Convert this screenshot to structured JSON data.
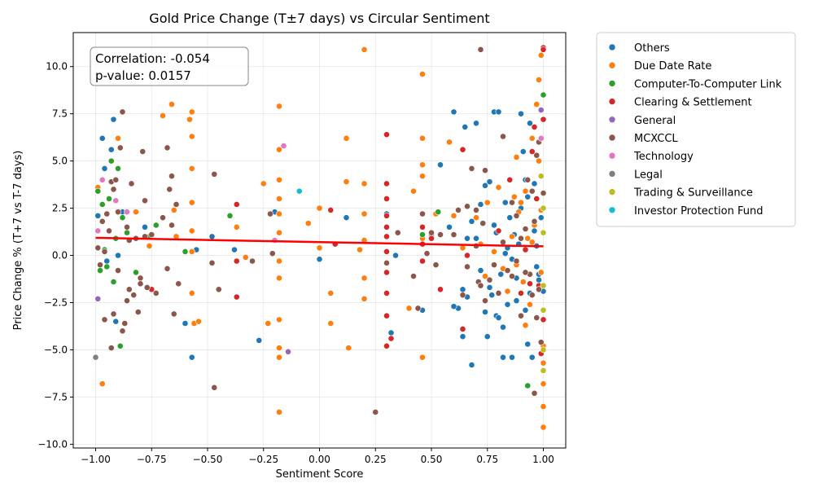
{
  "chart_data": {
    "type": "scatter",
    "title": "Gold Price Change (T±7 days) vs Circular Sentiment",
    "xlabel": "Sentiment Score",
    "ylabel": "Price Change % (T+7 vs T-7 days)",
    "xlim": [
      -1.1,
      1.1
    ],
    "ylim": [
      -10.2,
      11.8
    ],
    "x_ticks": [
      -1.0,
      -0.75,
      -0.5,
      -0.25,
      0.0,
      0.25,
      0.5,
      0.75,
      1.0
    ],
    "x_tick_labels": [
      "−1.00",
      "−0.75",
      "−0.50",
      "−0.25",
      "0.00",
      "0.25",
      "0.50",
      "0.75",
      "1.00"
    ],
    "y_ticks": [
      -10.0,
      -7.5,
      -5.0,
      -2.5,
      0.0,
      2.5,
      5.0,
      7.5,
      10.0
    ],
    "y_tick_labels": [
      "−10.0",
      "−7.5",
      "−5.0",
      "−2.5",
      "0.0",
      "2.5",
      "5.0",
      "7.5",
      "10.0"
    ],
    "grid": true,
    "legend_position": "outside-right",
    "annotation": {
      "correlation_line": "Correlation: -0.054",
      "pvalue_line": "p-value: 0.0157"
    },
    "regression_line": {
      "x": [
        -1.0,
        1.0
      ],
      "y": [
        0.93,
        0.48
      ],
      "color": "#ff0000"
    },
    "series": [
      {
        "name": "Others",
        "color": "#1f77b4",
        "x": [
          -0.99,
          -0.97,
          -0.96,
          -0.95,
          -0.93,
          -0.92,
          -0.91,
          -0.9,
          -0.88,
          -0.78,
          -0.6,
          -0.57,
          -0.55,
          -0.48,
          -0.38,
          -0.27,
          -0.2,
          0.0,
          0.12,
          0.3,
          0.32,
          0.34,
          0.46,
          0.5,
          0.54,
          0.58,
          0.6,
          0.62,
          0.64,
          0.65,
          0.66,
          0.68,
          0.7,
          0.72,
          0.74,
          0.75,
          0.76,
          0.77,
          0.78,
          0.79,
          0.8,
          0.81,
          0.82,
          0.83,
          0.84,
          0.85,
          0.86,
          0.87,
          0.88,
          0.89,
          0.9,
          0.91,
          0.92,
          0.93,
          0.94,
          0.95,
          0.96,
          0.97,
          0.98,
          0.99,
          1.0,
          0.76,
          0.79,
          0.83,
          0.88,
          0.93,
          0.97,
          0.66,
          0.7,
          0.74,
          0.78,
          0.82,
          0.86,
          0.9,
          0.94,
          0.98,
          0.6,
          0.64,
          0.68,
          0.72,
          0.8,
          0.84,
          0.92,
          0.96
        ],
        "y": [
          2.1,
          6.2,
          4.6,
          -0.3,
          5.6,
          7.2,
          -3.5,
          0.0,
          2.3,
          1.5,
          -3.6,
          -5.4,
          0.3,
          1.0,
          0.3,
          -4.5,
          2.3,
          -0.2,
          2.0,
          2.2,
          -4.1,
          0.0,
          -2.9,
          1.1,
          4.8,
          1.5,
          7.6,
          -2.8,
          -4.3,
          6.8,
          0.9,
          -5.8,
          7.0,
          2.7,
          3.7,
          -4.3,
          3.9,
          -2.1,
          7.6,
          1.2,
          7.6,
          -1.0,
          -5.4,
          2.8,
          -2.6,
          2.0,
          -5.4,
          1.1,
          -1.2,
          0.6,
          7.5,
          5.5,
          4.0,
          -4.7,
          7.0,
          -5.4,
          3.8,
          0.5,
          -1.3,
          2.0,
          -1.9,
          -1.7,
          -3.2,
          0.1,
          -2.4,
          3.1,
          -0.6,
          -2.2,
          0.9,
          -3.0,
          1.6,
          -3.8,
          -0.2,
          2.5,
          -2.0,
          -1.0,
          -2.7,
          -1.8,
          1.8,
          -0.8,
          -3.3,
          0.4,
          -2.9,
          1.3
        ]
      },
      {
        "name": "Due Date Rate",
        "color": "#ff7f0e",
        "x": [
          -0.99,
          -0.97,
          -0.9,
          -0.82,
          -0.76,
          -0.7,
          -0.66,
          -0.65,
          -0.64,
          -0.58,
          -0.57,
          -0.57,
          -0.57,
          -0.57,
          -0.57,
          -0.57,
          -0.57,
          -0.56,
          -0.54,
          -0.37,
          -0.33,
          -0.25,
          -0.23,
          -0.18,
          -0.18,
          -0.18,
          -0.18,
          -0.18,
          -0.18,
          -0.18,
          -0.18,
          -0.18,
          -0.18,
          -0.18,
          -0.18,
          -0.05,
          0.0,
          0.0,
          0.05,
          0.05,
          0.12,
          0.12,
          0.13,
          0.18,
          0.2,
          0.2,
          0.2,
          0.2,
          0.2,
          0.2,
          0.4,
          0.42,
          0.46,
          0.46,
          0.46,
          0.46,
          0.46,
          0.46,
          0.52,
          0.58,
          0.6,
          0.64,
          0.7,
          0.75,
          0.8,
          0.85,
          0.88,
          0.9,
          0.92,
          0.95,
          0.97,
          0.98,
          0.99,
          1.0,
          1.0,
          1.0,
          1.0,
          1.0,
          0.86,
          0.88,
          0.89,
          0.91,
          0.93,
          0.94,
          0.96,
          0.99,
          0.87,
          0.9,
          0.95,
          0.99,
          0.84,
          0.82,
          0.78,
          0.74,
          0.72,
          0.92,
          0.98
        ],
        "y": [
          3.6,
          -6.8,
          6.2,
          2.3,
          0.5,
          7.4,
          8.0,
          2.4,
          1.0,
          7.2,
          7.6,
          6.3,
          4.6,
          2.8,
          1.3,
          0.2,
          -2.0,
          -3.6,
          -3.5,
          1.5,
          -0.1,
          3.8,
          -3.6,
          7.9,
          5.6,
          4.0,
          3.0,
          2.2,
          1.2,
          -0.3,
          -1.2,
          -3.4,
          -4.9,
          -5.4,
          -8.3,
          1.7,
          2.5,
          0.4,
          -2.0,
          -3.6,
          6.2,
          3.9,
          -4.9,
          0.3,
          10.9,
          3.8,
          2.2,
          0.8,
          -1.2,
          -2.3,
          -2.8,
          3.4,
          9.6,
          6.2,
          4.8,
          4.2,
          0.9,
          -5.4,
          2.2,
          6.0,
          2.1,
          0.4,
          2.0,
          2.8,
          3.6,
          4.0,
          5.2,
          2.8,
          3.4,
          6.2,
          8.0,
          9.3,
          10.6,
          -8.0,
          -9.1,
          -6.8,
          -5.7,
          -4.8,
          1.0,
          -0.5,
          2.3,
          -1.4,
          0.9,
          -2.6,
          1.6,
          -0.9,
          3.1,
          -3.2,
          0.7,
          2.4,
          -1.9,
          -0.7,
          0.2,
          -1.1,
          0.6,
          -3.7,
          5.0
        ]
      },
      {
        "name": "Computer-To-Computer Link",
        "color": "#2ca02c",
        "x": [
          -0.99,
          -0.98,
          -0.97,
          -0.96,
          -0.95,
          -0.94,
          -0.93,
          -0.92,
          -0.91,
          -0.9,
          -0.89,
          -0.88,
          -0.86,
          -0.82,
          -0.76,
          -0.73,
          -0.6,
          -0.4,
          0.46,
          0.53,
          0.93,
          1.0
        ],
        "y": [
          3.4,
          -0.8,
          2.7,
          0.3,
          -0.6,
          3.0,
          5.0,
          -1.4,
          0.9,
          4.6,
          -4.8,
          2.0,
          1.2,
          -0.9,
          1.0,
          1.6,
          0.2,
          2.1,
          1.1,
          2.3,
          -6.9,
          8.5
        ]
      },
      {
        "name": "Clearing & Settlement",
        "color": "#d62728",
        "x": [
          -0.75,
          -0.37,
          -0.37,
          -0.37,
          0.05,
          0.07,
          0.3,
          0.3,
          0.3,
          0.3,
          0.3,
          0.3,
          0.3,
          0.3,
          0.3,
          0.3,
          0.3,
          0.32,
          0.46,
          0.46,
          0.46,
          0.5,
          0.54,
          0.64,
          0.64,
          0.66,
          0.8,
          0.85,
          0.9,
          0.95,
          0.96,
          0.97,
          0.98,
          0.99,
          1.0,
          1.0,
          1.0,
          1.0,
          0.94,
          0.92
        ],
        "y": [
          -1.8,
          2.7,
          -0.3,
          -2.2,
          2.4,
          0.6,
          6.4,
          3.8,
          3.0,
          2.1,
          1.0,
          0.2,
          -0.9,
          -2.0,
          -3.2,
          -4.8,
          1.5,
          -4.4,
          0.6,
          1.5,
          -0.3,
          0.9,
          -1.8,
          5.6,
          -3.9,
          0.0,
          1.3,
          4.0,
          -2.0,
          5.5,
          6.8,
          3.0,
          -1.6,
          -5.2,
          11.0,
          10.9,
          7.2,
          -3.4,
          -1.5,
          0.3
        ]
      },
      {
        "name": "General",
        "color": "#9467bd",
        "x": [
          -0.99,
          -0.14,
          0.99
        ],
        "y": [
          -2.3,
          -5.1,
          7.7
        ]
      },
      {
        "name": "MCXCCL",
        "color": "#8c564b",
        "x": [
          -0.99,
          -0.98,
          -0.97,
          -0.96,
          -0.95,
          -0.94,
          -0.93,
          -0.92,
          -0.91,
          -0.9,
          -0.89,
          -0.88,
          -0.87,
          -0.86,
          -0.85,
          -0.84,
          -0.83,
          -0.82,
          -0.81,
          -0.8,
          -0.79,
          -0.78,
          -0.77,
          -0.75,
          -0.73,
          -0.7,
          -0.68,
          -0.67,
          -0.66,
          -0.65,
          -0.64,
          -0.63,
          -0.47,
          -0.47,
          -0.45,
          -0.3,
          -0.21,
          -0.22,
          0.25,
          0.3,
          0.35,
          0.42,
          0.44,
          0.46,
          0.48,
          0.5,
          0.52,
          0.54,
          0.6,
          0.62,
          0.64,
          0.66,
          0.68,
          0.7,
          0.71,
          0.72,
          0.73,
          0.74,
          0.76,
          0.78,
          0.8,
          0.82,
          0.84,
          0.86,
          0.88,
          0.9,
          0.92,
          0.93,
          0.94,
          0.95,
          0.96,
          0.97,
          0.98,
          0.99,
          1.0,
          -0.93,
          -0.88,
          -0.86,
          -0.9,
          -0.96,
          -0.92,
          -0.85,
          -0.8,
          -0.78,
          -0.68,
          -0.66,
          -0.48,
          0.72,
          0.82,
          0.97,
          0.88,
          0.92,
          0.96,
          0.7,
          0.74,
          0.86,
          0.9,
          0.95,
          0.98,
          0.66
        ],
        "y": [
          0.4,
          -0.5,
          1.8,
          -3.4,
          2.2,
          1.3,
          3.9,
          -3.1,
          4.0,
          -0.8,
          5.7,
          7.6,
          -3.6,
          1.5,
          -1.8,
          3.8,
          -2.1,
          0.9,
          -3.0,
          -1.2,
          5.5,
          2.9,
          -1.7,
          1.1,
          -2.0,
          2.0,
          5.7,
          3.5,
          4.2,
          -3.1,
          2.7,
          -1.5,
          4.3,
          -7.0,
          -1.8,
          -0.3,
          0.1,
          2.2,
          -8.3,
          -0.4,
          1.2,
          -1.1,
          -2.8,
          2.2,
          0.1,
          1.2,
          -0.5,
          1.1,
          1.1,
          2.4,
          -2.1,
          -0.6,
          4.6,
          2.4,
          -1.4,
          10.9,
          1.7,
          4.5,
          -1.3,
          -0.5,
          -2.0,
          6.3,
          -0.8,
          2.8,
          -0.3,
          -3.2,
          1.4,
          4.0,
          -1.0,
          3.4,
          -7.3,
          5.3,
          6.0,
          -4.6,
          3.3,
          -4.9,
          -4.0,
          -2.4,
          2.3,
          0.2,
          3.5,
          0.8,
          -1.5,
          1.0,
          -0.7,
          1.6,
          -0.4,
          -1.6,
          0.7,
          -3.3,
          2.1,
          -0.9,
          1.8,
          0.5,
          -2.4,
          -1.1,
          0.9,
          -2.1,
          -1.8,
          2.6
        ]
      },
      {
        "name": "Technology",
        "color": "#e377c2",
        "x": [
          -0.99,
          -0.97,
          -0.91,
          -0.86,
          -0.2,
          -0.16,
          0.99
        ],
        "y": [
          1.3,
          4.0,
          2.9,
          2.3,
          0.8,
          5.8,
          6.2
        ]
      },
      {
        "name": "Legal",
        "color": "#7f7f7f",
        "x": [
          -1.0
        ],
        "y": [
          -5.4
        ]
      },
      {
        "name": "Trading & Surveillance",
        "color": "#bcbd22",
        "x": [
          1.0,
          1.0,
          1.0,
          1.0,
          1.0,
          1.0,
          0.99
        ],
        "y": [
          -6.1,
          -5.0,
          -2.9,
          -1.6,
          1.2,
          2.5,
          4.2
        ]
      },
      {
        "name": "Investor Protection Fund",
        "color": "#17becf",
        "x": [
          -0.09
        ],
        "y": [
          3.4
        ]
      }
    ]
  }
}
